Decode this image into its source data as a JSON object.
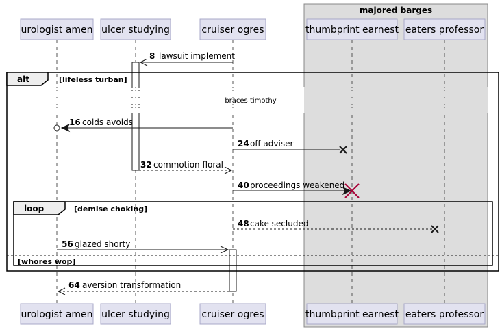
{
  "group": {
    "title": "majored barges"
  },
  "participants": [
    {
      "id": "urologist",
      "label": "urologist amen"
    },
    {
      "id": "ulcer",
      "label": "ulcer studying"
    },
    {
      "id": "cruiser",
      "label": "cruiser ogres"
    },
    {
      "id": "thumbprint",
      "label": "thumbprint earnest"
    },
    {
      "id": "eaters",
      "label": "eaters professor"
    }
  ],
  "fragments": {
    "alt": {
      "keyword": "alt",
      "guard": "[lifeless turban]",
      "else_guard": "[whores wop]"
    },
    "loop": {
      "keyword": "loop",
      "guard": "[demise choking]"
    }
  },
  "divider": {
    "text": "braces timothy"
  },
  "messages": [
    {
      "num": "8",
      "label": "lawsuit implement"
    },
    {
      "num": "16",
      "label": "colds avoids"
    },
    {
      "num": "24",
      "label": "off adviser"
    },
    {
      "num": "32",
      "label": "commotion floral"
    },
    {
      "num": "40",
      "label": "proceedings weakened"
    },
    {
      "num": "48",
      "label": "cake secluded"
    },
    {
      "num": "56",
      "label": "glazed shorty"
    },
    {
      "num": "64",
      "label": "aversion transformation"
    }
  ]
}
